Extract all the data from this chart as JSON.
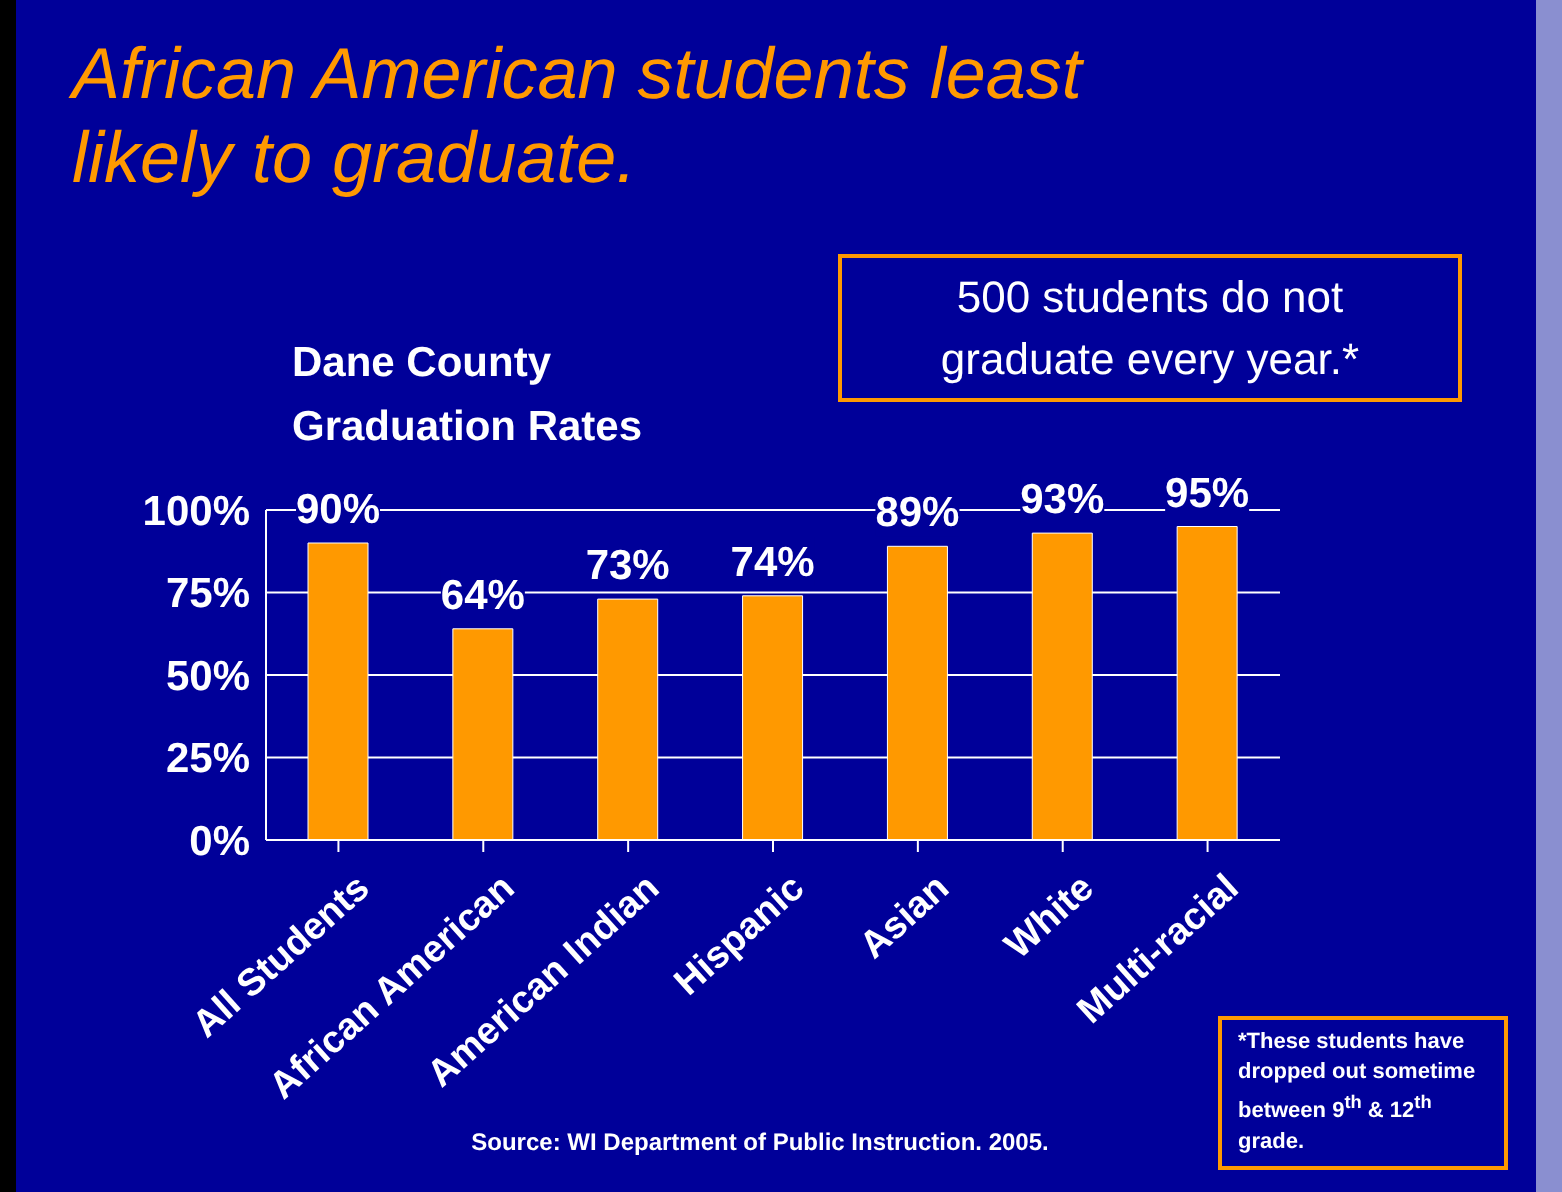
{
  "chart_data": {
    "type": "bar",
    "title": "African American students least likely to graduate.",
    "subtitle": "Dane County Graduation Rates",
    "categories": [
      "All Students",
      "African American",
      "American Indian",
      "Hispanic",
      "Asian",
      "White",
      "Multi-racial"
    ],
    "values": [
      90,
      64,
      73,
      74,
      89,
      93,
      95
    ],
    "value_labels": [
      "90%",
      "64%",
      "73%",
      "74%",
      "89%",
      "93%",
      "95%"
    ],
    "color": "#ff9900",
    "ylim": [
      0,
      100
    ],
    "yticks": [
      {
        "value": 0,
        "label": "0%"
      },
      {
        "value": 25,
        "label": "25%"
      },
      {
        "value": 50,
        "label": "50%"
      },
      {
        "value": 75,
        "label": "75%"
      },
      {
        "value": 100,
        "label": "100%"
      }
    ],
    "grid": "y",
    "annotations": [
      "500 students do not graduate every year.*",
      "Source: WI Department of Public Instruction. 2005.",
      "*These students have dropped out sometime between 9$^{th}$ & 12$^{th}$ grade."
    ]
  }
}
